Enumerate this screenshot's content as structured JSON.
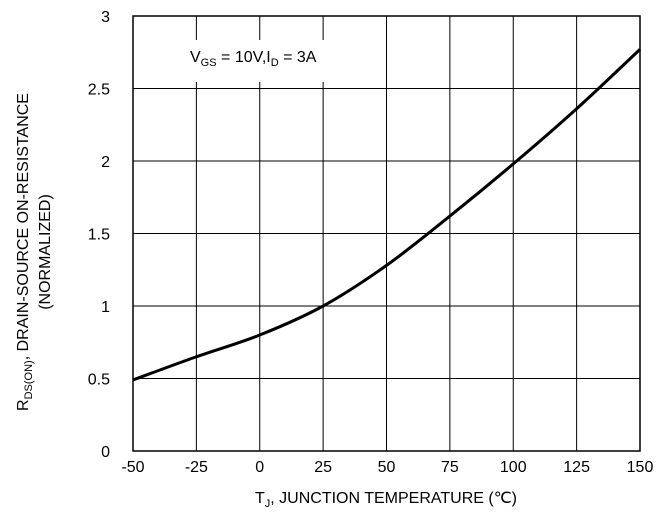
{
  "chart_data": {
    "type": "line",
    "title": "",
    "xlabel": {
      "prefix": "T",
      "subscript": "J",
      "suffix": ", JUNCTION TEMPERATURE (℃)"
    },
    "ylabel": {
      "line1_prefix": "R",
      "line1_subscript": "DS(ON)",
      "line1_suffix": ", DRAIN-SOURCE ON-RESISTANCE",
      "line2": "(NORMALIZED)"
    },
    "annotation": {
      "v": "V",
      "v_sub": "GS",
      "mid": " = 10V,I",
      "i_sub": "D",
      "end": " = 3A"
    },
    "xlim": [
      -50,
      150
    ],
    "ylim": [
      0,
      3
    ],
    "x_ticks": [
      "-50",
      "-25",
      "0",
      "25",
      "50",
      "75",
      "100",
      "125",
      "150"
    ],
    "y_ticks": [
      "0",
      "0.5",
      "1",
      "1.5",
      "2",
      "2.5",
      "3"
    ],
    "grid": true,
    "series": [
      {
        "x": [
          -50,
          -25,
          0,
          25,
          50,
          75,
          100,
          125,
          150
        ],
        "y": [
          0.49,
          0.65,
          0.8,
          1.0,
          1.28,
          1.62,
          1.98,
          2.36,
          2.77
        ]
      }
    ],
    "line_color": "#000000"
  }
}
